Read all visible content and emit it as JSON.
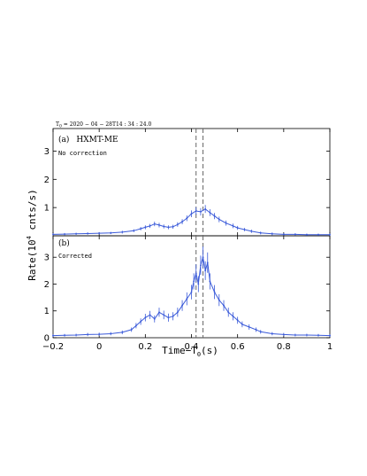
{
  "figure": {
    "header": "T",
    "header_sub": "0",
    "header_value": " = 2020 − 04 − 28T14 : 34 : 24.0",
    "ylabel_prefix": "Rate(10",
    "ylabel_exp": "4",
    "ylabel_suffix": " cnts/s)",
    "xlabel_prefix": "Time−T",
    "xlabel_sub": "0",
    "xlabel_suffix": "(s)"
  },
  "chart_data": [
    {
      "type": "line",
      "panel_tag": "(a)",
      "instrument": "HXMT-ME",
      "annotation": "No correction",
      "xlim": [
        -0.2,
        1.0
      ],
      "ylim": [
        0,
        3.8
      ],
      "yticks": [
        1,
        2,
        3
      ],
      "xticks": [],
      "grid": false,
      "color": "#3a5ad9",
      "vlines": [
        0.42,
        0.45
      ],
      "x": [
        -0.2,
        -0.15,
        -0.1,
        -0.05,
        0.0,
        0.05,
        0.1,
        0.15,
        0.18,
        0.2,
        0.22,
        0.24,
        0.26,
        0.28,
        0.3,
        0.32,
        0.34,
        0.36,
        0.38,
        0.4,
        0.42,
        0.44,
        0.46,
        0.48,
        0.5,
        0.52,
        0.55,
        0.58,
        0.6,
        0.63,
        0.66,
        0.7,
        0.75,
        0.8,
        0.85,
        0.9,
        0.95,
        1.0
      ],
      "y": [
        0.05,
        0.06,
        0.07,
        0.08,
        0.09,
        0.1,
        0.13,
        0.18,
        0.25,
        0.3,
        0.35,
        0.42,
        0.38,
        0.33,
        0.3,
        0.32,
        0.4,
        0.5,
        0.62,
        0.78,
        0.88,
        0.85,
        0.95,
        0.82,
        0.7,
        0.58,
        0.45,
        0.35,
        0.28,
        0.22,
        0.16,
        0.1,
        0.07,
        0.05,
        0.05,
        0.04,
        0.04,
        0.04
      ],
      "yerr": [
        0.04,
        0.04,
        0.04,
        0.04,
        0.04,
        0.04,
        0.05,
        0.05,
        0.06,
        0.07,
        0.07,
        0.08,
        0.08,
        0.07,
        0.07,
        0.07,
        0.08,
        0.09,
        0.1,
        0.12,
        0.13,
        0.13,
        0.14,
        0.12,
        0.11,
        0.1,
        0.09,
        0.08,
        0.07,
        0.06,
        0.06,
        0.05,
        0.05,
        0.04,
        0.04,
        0.04,
        0.04,
        0.04
      ]
    },
    {
      "type": "line",
      "panel_tag": "(b)",
      "annotation": "Corrected",
      "xlim": [
        -0.2,
        1.0
      ],
      "ylim": [
        0,
        3.8
      ],
      "yticks": [
        0,
        1,
        2,
        3
      ],
      "xticks": [
        -0.2,
        0,
        0.2,
        0.4,
        0.6,
        0.8,
        1
      ],
      "xtick_labels": [
        "−0.2",
        "0",
        "0.2",
        "0.4",
        "0.6",
        "0.8",
        "1"
      ],
      "grid": false,
      "color": "#3a5ad9",
      "vlines": [
        0.42,
        0.45
      ],
      "x": [
        -0.2,
        -0.15,
        -0.1,
        -0.05,
        0.0,
        0.05,
        0.1,
        0.14,
        0.16,
        0.18,
        0.2,
        0.22,
        0.24,
        0.26,
        0.28,
        0.3,
        0.32,
        0.34,
        0.36,
        0.38,
        0.4,
        0.41,
        0.42,
        0.43,
        0.44,
        0.45,
        0.46,
        0.47,
        0.48,
        0.5,
        0.52,
        0.54,
        0.56,
        0.58,
        0.6,
        0.62,
        0.65,
        0.68,
        0.7,
        0.75,
        0.8,
        0.85,
        0.9,
        0.95,
        1.0
      ],
      "y": [
        0.08,
        0.09,
        0.1,
        0.12,
        0.13,
        0.15,
        0.2,
        0.3,
        0.45,
        0.6,
        0.75,
        0.85,
        0.7,
        0.95,
        0.85,
        0.75,
        0.8,
        0.95,
        1.2,
        1.45,
        1.7,
        2.1,
        2.4,
        2.0,
        2.7,
        3.0,
        2.5,
        2.8,
        2.1,
        1.7,
        1.4,
        1.2,
        0.95,
        0.8,
        0.65,
        0.5,
        0.4,
        0.3,
        0.22,
        0.15,
        0.12,
        0.1,
        0.1,
        0.09,
        0.08
      ],
      "yerr": [
        0.05,
        0.05,
        0.05,
        0.06,
        0.06,
        0.06,
        0.07,
        0.08,
        0.1,
        0.12,
        0.14,
        0.15,
        0.13,
        0.17,
        0.16,
        0.15,
        0.15,
        0.17,
        0.2,
        0.24,
        0.27,
        0.3,
        0.33,
        0.3,
        0.36,
        0.4,
        0.35,
        0.38,
        0.3,
        0.26,
        0.22,
        0.2,
        0.17,
        0.15,
        0.13,
        0.11,
        0.1,
        0.08,
        0.07,
        0.06,
        0.06,
        0.05,
        0.05,
        0.05,
        0.05
      ]
    }
  ]
}
